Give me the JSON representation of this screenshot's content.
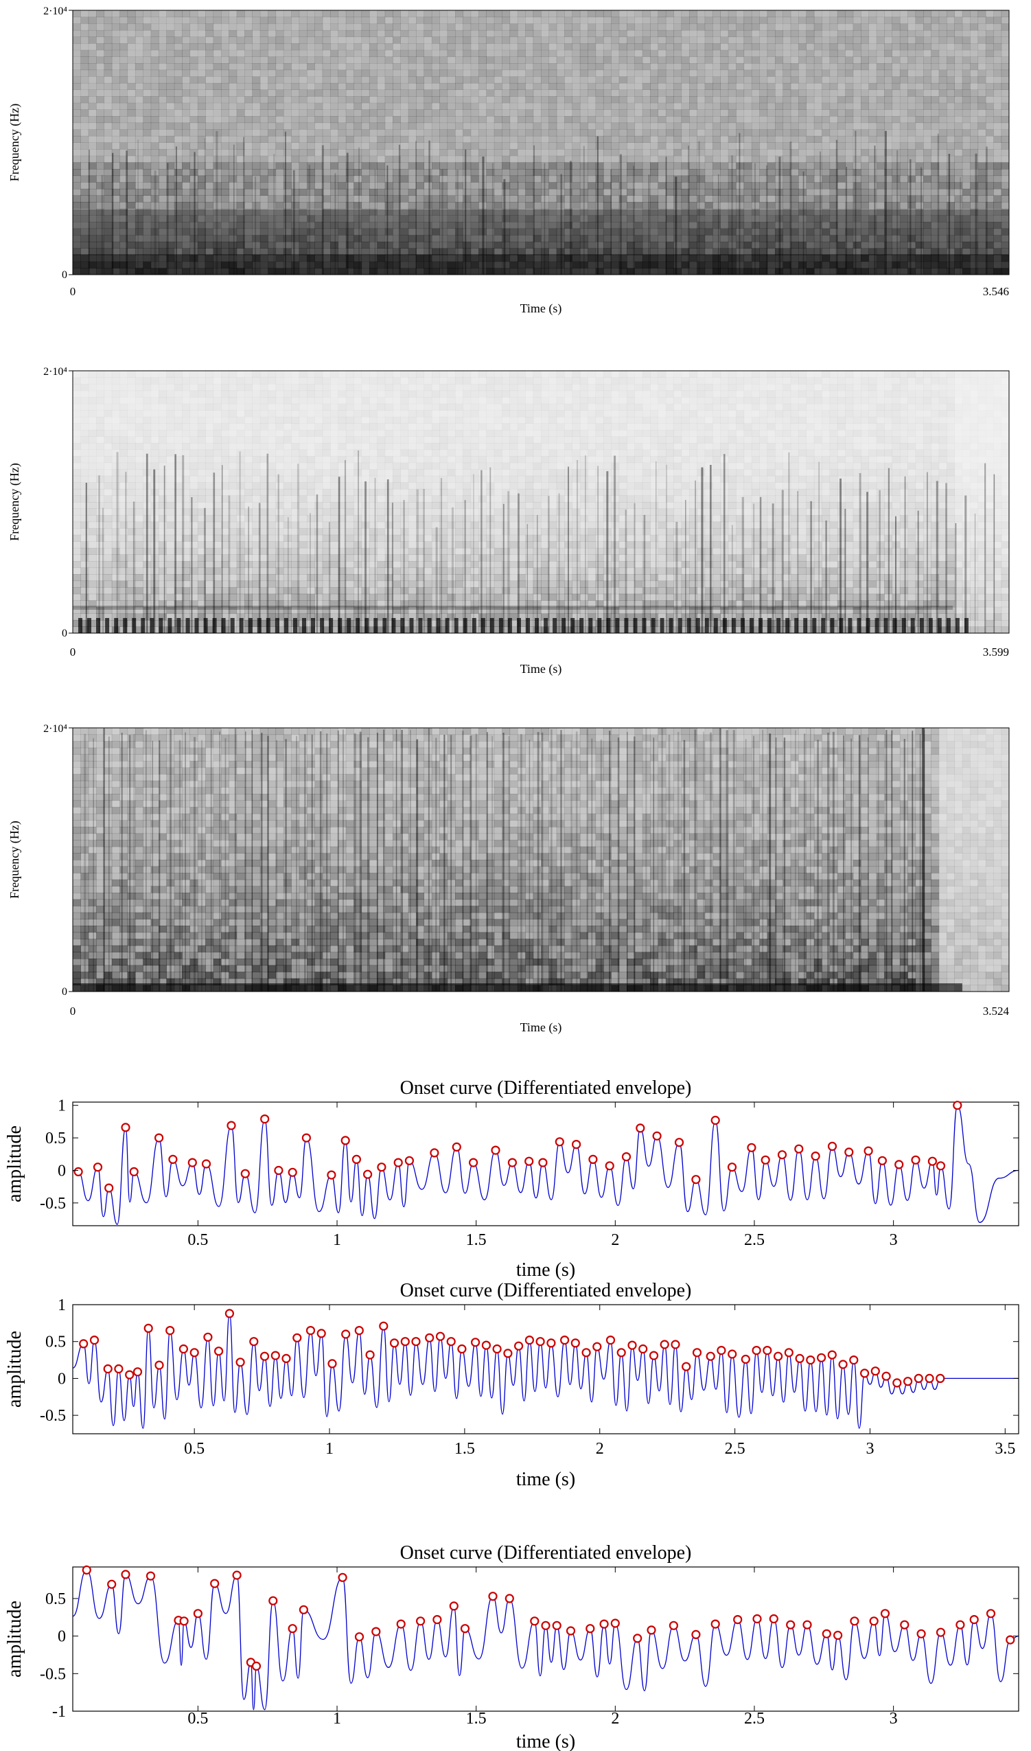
{
  "chart_data": [
    {
      "type": "heatmap",
      "kind": "spectrogram",
      "title": "",
      "xlabel": "Time (s)",
      "ylabel": "Frequency (Hz)",
      "x_ticks": [
        "0",
        "3.546"
      ],
      "y_ticks": [
        "0",
        "2·10⁴"
      ],
      "xlim": [
        0,
        3.546
      ],
      "ylim": [
        0,
        20000
      ],
      "colormap": "gray reversed",
      "description_hint": "dense broadband noise with darker low-frequency band and many vertical onset streaks"
    },
    {
      "type": "heatmap",
      "kind": "spectrogram",
      "title": "",
      "xlabel": "Time (s)",
      "ylabel": "Frequency (Hz)",
      "x_ticks": [
        "0",
        "3.599"
      ],
      "y_ticks": [
        "0",
        "2·10⁴"
      ],
      "xlim": [
        0,
        3.599
      ],
      "ylim": [
        0,
        20000
      ],
      "colormap": "gray reversed"
    },
    {
      "type": "heatmap",
      "kind": "spectrogram",
      "title": "",
      "xlabel": "Time (s)",
      "ylabel": "Frequency (Hz)",
      "x_ticks": [
        "0",
        "3.524"
      ],
      "y_ticks": [
        "0",
        "2·10⁴"
      ],
      "xlim": [
        0,
        3.524
      ],
      "ylim": [
        0,
        20000
      ],
      "colormap": "gray reversed"
    },
    {
      "type": "line",
      "title": "Onset curve (Differentiated envelope)",
      "xlabel": "time (s)",
      "ylabel": "amplitude",
      "xlim": [
        0.05,
        3.45
      ],
      "ylim": [
        -0.85,
        1.05
      ],
      "x_ticks": [
        0.5,
        1,
        1.5,
        2,
        2.5,
        3
      ],
      "x_tick_labels": [
        "0.5",
        "1",
        "1.5",
        "2",
        "2.5",
        "3"
      ],
      "y_ticks": [
        -0.5,
        0,
        0.5,
        1
      ],
      "y_tick_labels": [
        "-0.5",
        "0",
        "0.5",
        "1"
      ],
      "line_color": "#0000cc",
      "marker_color": "#cc0000",
      "peaks": [
        [
          0.07,
          -0.02
        ],
        [
          0.14,
          0.05
        ],
        [
          0.18,
          -0.27
        ],
        [
          0.24,
          0.66
        ],
        [
          0.27,
          -0.02
        ],
        [
          0.36,
          0.5
        ],
        [
          0.41,
          0.17
        ],
        [
          0.48,
          0.12
        ],
        [
          0.53,
          0.1
        ],
        [
          0.62,
          0.69
        ],
        [
          0.67,
          -0.05
        ],
        [
          0.74,
          0.79
        ],
        [
          0.79,
          0.0
        ],
        [
          0.84,
          -0.03
        ],
        [
          0.89,
          0.5
        ],
        [
          0.98,
          -0.07
        ],
        [
          1.03,
          0.46
        ],
        [
          1.07,
          0.17
        ],
        [
          1.11,
          -0.06
        ],
        [
          1.16,
          0.05
        ],
        [
          1.22,
          0.12
        ],
        [
          1.26,
          0.15
        ],
        [
          1.35,
          0.27
        ],
        [
          1.43,
          0.36
        ],
        [
          1.49,
          0.12
        ],
        [
          1.57,
          0.31
        ],
        [
          1.63,
          0.12
        ],
        [
          1.69,
          0.14
        ],
        [
          1.74,
          0.12
        ],
        [
          1.8,
          0.44
        ],
        [
          1.86,
          0.4
        ],
        [
          1.92,
          0.17
        ],
        [
          1.98,
          0.07
        ],
        [
          2.04,
          0.21
        ],
        [
          2.09,
          0.65
        ],
        [
          2.15,
          0.53
        ],
        [
          2.23,
          0.43
        ],
        [
          2.29,
          -0.14
        ],
        [
          2.36,
          0.77
        ],
        [
          2.42,
          0.05
        ],
        [
          2.49,
          0.35
        ],
        [
          2.54,
          0.16
        ],
        [
          2.6,
          0.24
        ],
        [
          2.66,
          0.33
        ],
        [
          2.72,
          0.22
        ],
        [
          2.78,
          0.37
        ],
        [
          2.84,
          0.28
        ],
        [
          2.91,
          0.3
        ],
        [
          2.96,
          0.15
        ],
        [
          3.02,
          0.09
        ],
        [
          3.08,
          0.16
        ],
        [
          3.14,
          0.14
        ],
        [
          3.17,
          0.07
        ],
        [
          3.23,
          1.0
        ]
      ],
      "shape": "pulse",
      "tail": [
        3.23,
        3.45
      ]
    },
    {
      "type": "line",
      "title": "Onset curve (Differentiated envelope)",
      "xlabel": "time (s)",
      "ylabel": "amplitude",
      "xlim": [
        0.05,
        3.55
      ],
      "ylim": [
        -0.75,
        1.0
      ],
      "x_ticks": [
        0.5,
        1,
        1.5,
        2,
        2.5,
        3,
        3.5
      ],
      "x_tick_labels": [
        "0.5",
        "1",
        "1.5",
        "2",
        "2.5",
        "3",
        "3.5"
      ],
      "y_ticks": [
        -0.5,
        0,
        0.5,
        1
      ],
      "y_tick_labels": [
        "-0.5",
        "0",
        "0.5",
        "1"
      ],
      "line_color": "#0000cc",
      "marker_color": "#cc0000",
      "peaks": [
        [
          0.09,
          0.47
        ],
        [
          0.13,
          0.52
        ],
        [
          0.18,
          0.13
        ],
        [
          0.22,
          0.13
        ],
        [
          0.26,
          0.05
        ],
        [
          0.29,
          0.09
        ],
        [
          0.33,
          0.68
        ],
        [
          0.37,
          0.18
        ],
        [
          0.41,
          0.65
        ],
        [
          0.46,
          0.4
        ],
        [
          0.5,
          0.35
        ],
        [
          0.55,
          0.56
        ],
        [
          0.59,
          0.37
        ],
        [
          0.63,
          0.88
        ],
        [
          0.67,
          0.22
        ],
        [
          0.72,
          0.5
        ],
        [
          0.76,
          0.3
        ],
        [
          0.8,
          0.31
        ],
        [
          0.84,
          0.27
        ],
        [
          0.88,
          0.55
        ],
        [
          0.93,
          0.65
        ],
        [
          0.97,
          0.61
        ],
        [
          1.01,
          0.2
        ],
        [
          1.06,
          0.6
        ],
        [
          1.11,
          0.65
        ],
        [
          1.15,
          0.32
        ],
        [
          1.2,
          0.71
        ],
        [
          1.24,
          0.48
        ],
        [
          1.28,
          0.5
        ],
        [
          1.32,
          0.5
        ],
        [
          1.37,
          0.55
        ],
        [
          1.41,
          0.57
        ],
        [
          1.45,
          0.5
        ],
        [
          1.49,
          0.4
        ],
        [
          1.54,
          0.49
        ],
        [
          1.58,
          0.45
        ],
        [
          1.62,
          0.4
        ],
        [
          1.66,
          0.34
        ],
        [
          1.7,
          0.44
        ],
        [
          1.74,
          0.52
        ],
        [
          1.78,
          0.5
        ],
        [
          1.82,
          0.48
        ],
        [
          1.87,
          0.52
        ],
        [
          1.91,
          0.48
        ],
        [
          1.95,
          0.35
        ],
        [
          1.99,
          0.43
        ],
        [
          2.04,
          0.52
        ],
        [
          2.08,
          0.35
        ],
        [
          2.12,
          0.45
        ],
        [
          2.16,
          0.4
        ],
        [
          2.2,
          0.31
        ],
        [
          2.24,
          0.46
        ],
        [
          2.28,
          0.46
        ],
        [
          2.32,
          0.16
        ],
        [
          2.36,
          0.35
        ],
        [
          2.41,
          0.3
        ],
        [
          2.45,
          0.38
        ],
        [
          2.49,
          0.33
        ],
        [
          2.54,
          0.26
        ],
        [
          2.58,
          0.38
        ],
        [
          2.62,
          0.38
        ],
        [
          2.66,
          0.3
        ],
        [
          2.7,
          0.35
        ],
        [
          2.74,
          0.27
        ],
        [
          2.78,
          0.25
        ],
        [
          2.82,
          0.28
        ],
        [
          2.86,
          0.32
        ],
        [
          2.9,
          0.19
        ],
        [
          2.94,
          0.25
        ],
        [
          2.98,
          0.07
        ],
        [
          3.02,
          0.1
        ],
        [
          3.06,
          0.03
        ],
        [
          3.1,
          -0.06
        ],
        [
          3.14,
          -0.04
        ],
        [
          3.18,
          0.0
        ],
        [
          3.22,
          0.0
        ],
        [
          3.26,
          0.0
        ]
      ],
      "shape": "ripple",
      "tail": [
        3.26,
        3.55
      ]
    },
    {
      "type": "line",
      "title": "Onset curve (Differentiated envelope)",
      "xlabel": "time (s)",
      "ylabel": "amplitude",
      "xlim": [
        0.05,
        3.45
      ],
      "ylim": [
        -1.0,
        0.92
      ],
      "x_ticks": [
        0.5,
        1,
        1.5,
        2,
        2.5,
        3
      ],
      "x_tick_labels": [
        "0.5",
        "1",
        "1.5",
        "2",
        "2.5",
        "3"
      ],
      "y_ticks": [
        -1,
        -0.5,
        0,
        0.5
      ],
      "y_tick_labels": [
        "-1",
        "-0.5",
        "0",
        "0.5"
      ],
      "line_color": "#0000cc",
      "marker_color": "#cc0000",
      "peaks": [
        [
          0.1,
          0.88
        ],
        [
          0.19,
          0.69
        ],
        [
          0.24,
          0.82
        ],
        [
          0.33,
          0.8
        ],
        [
          0.43,
          0.21
        ],
        [
          0.45,
          0.2
        ],
        [
          0.5,
          0.3
        ],
        [
          0.56,
          0.7
        ],
        [
          0.64,
          0.81
        ],
        [
          0.69,
          -0.35
        ],
        [
          0.71,
          -0.4
        ],
        [
          0.77,
          0.47
        ],
        [
          0.84,
          0.1
        ],
        [
          0.88,
          0.35
        ],
        [
          1.02,
          0.78
        ],
        [
          1.08,
          -0.01
        ],
        [
          1.14,
          0.06
        ],
        [
          1.23,
          0.16
        ],
        [
          1.3,
          0.2
        ],
        [
          1.36,
          0.22
        ],
        [
          1.42,
          0.4
        ],
        [
          1.46,
          0.1
        ],
        [
          1.56,
          0.53
        ],
        [
          1.62,
          0.5
        ],
        [
          1.71,
          0.2
        ],
        [
          1.75,
          0.14
        ],
        [
          1.79,
          0.14
        ],
        [
          1.84,
          0.07
        ],
        [
          1.91,
          0.1
        ],
        [
          1.96,
          0.16
        ],
        [
          2.0,
          0.17
        ],
        [
          2.08,
          -0.03
        ],
        [
          2.13,
          0.08
        ],
        [
          2.21,
          0.14
        ],
        [
          2.29,
          0.02
        ],
        [
          2.36,
          0.16
        ],
        [
          2.44,
          0.22
        ],
        [
          2.51,
          0.23
        ],
        [
          2.57,
          0.23
        ],
        [
          2.63,
          0.15
        ],
        [
          2.69,
          0.15
        ],
        [
          2.76,
          0.03
        ],
        [
          2.8,
          0.01
        ],
        [
          2.86,
          0.2
        ],
        [
          2.93,
          0.2
        ],
        [
          2.97,
          0.3
        ],
        [
          3.04,
          0.15
        ],
        [
          3.1,
          0.03
        ],
        [
          3.17,
          0.05
        ],
        [
          3.24,
          0.15
        ],
        [
          3.29,
          0.22
        ],
        [
          3.35,
          0.3
        ],
        [
          3.42,
          -0.05
        ]
      ],
      "shape": "pulse",
      "tail": [
        3.42,
        3.45
      ]
    }
  ]
}
